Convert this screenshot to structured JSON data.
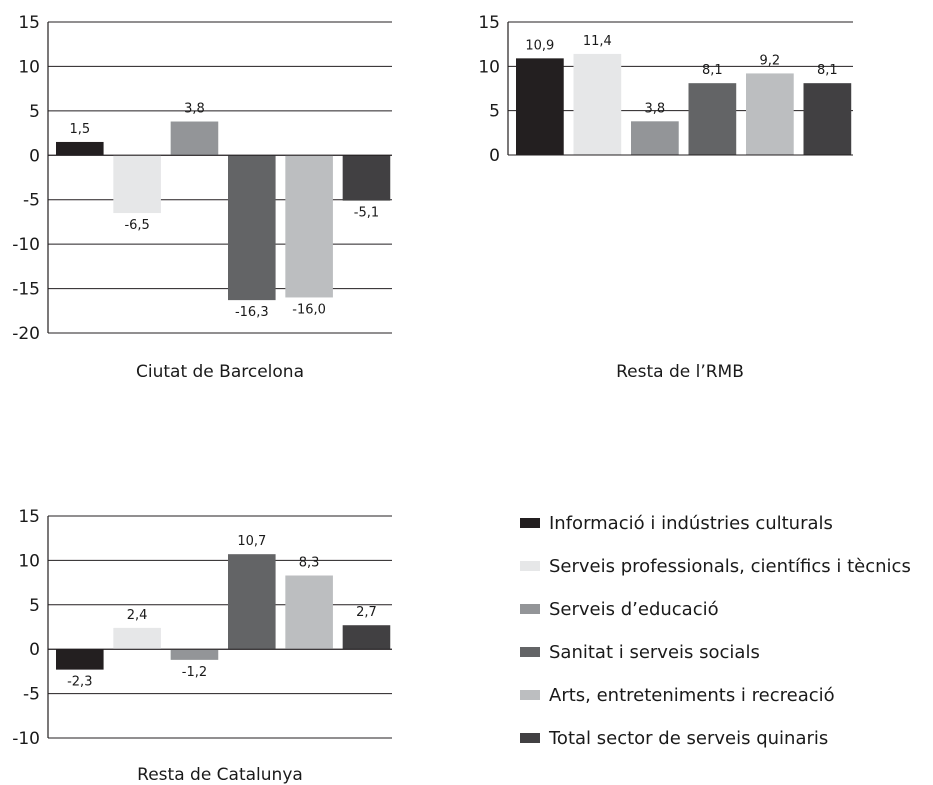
{
  "legend": [
    {
      "label": "Informació i indústries culturals",
      "color": "#231f20"
    },
    {
      "label": "Serveis professionals, científics i tècnics",
      "color": "#e6e7e8"
    },
    {
      "label": "Serveis d’educació",
      "color": "#939598"
    },
    {
      "label": "Sanitat i serveis socials",
      "color": "#636466"
    },
    {
      "label": "Arts, entreteniments i recreació",
      "color": "#bcbec0"
    },
    {
      "label": "Total sector de serveis quinaris",
      "color": "#414042"
    }
  ],
  "chart_data": [
    {
      "type": "bar",
      "title": "Ciutat de Barcelona",
      "categories": [
        "Informació i indústries culturals",
        "Serveis professionals, científics i tècnics",
        "Serveis d’educació",
        "Sanitat i serveis socials",
        "Arts, entreteniments i recreació",
        "Total sector de serveis quinaris"
      ],
      "values": [
        1.5,
        -6.5,
        3.8,
        -16.3,
        -16.0,
        -5.1
      ],
      "value_labels": [
        "1,5",
        "-6,5",
        "3,8",
        "-16,3",
        "-16,0",
        "-5,1"
      ],
      "ylim": [
        -20,
        15
      ],
      "yticks": [
        15,
        10,
        5,
        0,
        -5,
        -10,
        -15,
        -20
      ],
      "grid": true
    },
    {
      "type": "bar",
      "title": "Resta de l’RMB",
      "categories": [
        "Informació i indústries culturals",
        "Serveis professionals, científics i tècnics",
        "Serveis d’educació",
        "Sanitat i serveis socials",
        "Arts, entreteniments i recreació",
        "Total sector de serveis quinaris"
      ],
      "values": [
        10.9,
        11.4,
        3.8,
        8.1,
        9.2,
        8.1
      ],
      "value_labels": [
        "10,9",
        "11,4",
        "3,8",
        "8,1",
        "9,2",
        "8,1"
      ],
      "ylim": [
        0,
        15
      ],
      "yticks": [
        15,
        10,
        5,
        0
      ],
      "grid": true
    },
    {
      "type": "bar",
      "title": "Resta de Catalunya",
      "categories": [
        "Informació i indústries culturals",
        "Serveis professionals, científics i tècnics",
        "Serveis d’educació",
        "Sanitat i serveis socials",
        "Arts, entreteniments i recreació",
        "Total sector de serveis quinaris"
      ],
      "values": [
        -2.3,
        2.4,
        -1.2,
        10.7,
        8.3,
        2.7
      ],
      "value_labels": [
        "-2,3",
        "2,4",
        "-1,2",
        "10,7",
        "8,3",
        "2,7"
      ],
      "ylim": [
        -10,
        15
      ],
      "yticks": [
        15,
        10,
        5,
        0,
        -5,
        -10
      ],
      "grid": true
    }
  ]
}
